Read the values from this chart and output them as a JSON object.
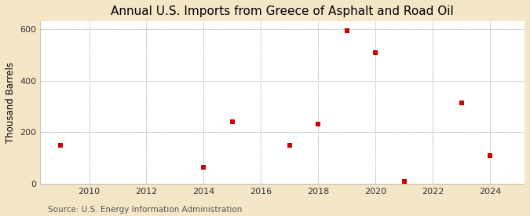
{
  "title": "Annual U.S. Imports from Greece of Asphalt and Road Oil",
  "ylabel": "Thousand Barrels",
  "source": "Source: U.S. Energy Information Administration",
  "figure_background_color": "#f5e6c8",
  "plot_background_color": "#ffffff",
  "data_color": "#cc0000",
  "years": [
    2009,
    2014,
    2015,
    2017,
    2018,
    2019,
    2020,
    2021,
    2023,
    2024
  ],
  "values": [
    150,
    65,
    240,
    150,
    230,
    595,
    510,
    10,
    315,
    110
  ],
  "xlim": [
    2008.3,
    2025.2
  ],
  "ylim": [
    0,
    630
  ],
  "yticks": [
    0,
    200,
    400,
    600
  ],
  "xticks": [
    2010,
    2012,
    2014,
    2016,
    2018,
    2020,
    2022,
    2024
  ],
  "marker_size": 22,
  "marker_style": "s",
  "title_fontsize": 11,
  "label_fontsize": 8.5,
  "tick_fontsize": 8,
  "source_fontsize": 7.5
}
